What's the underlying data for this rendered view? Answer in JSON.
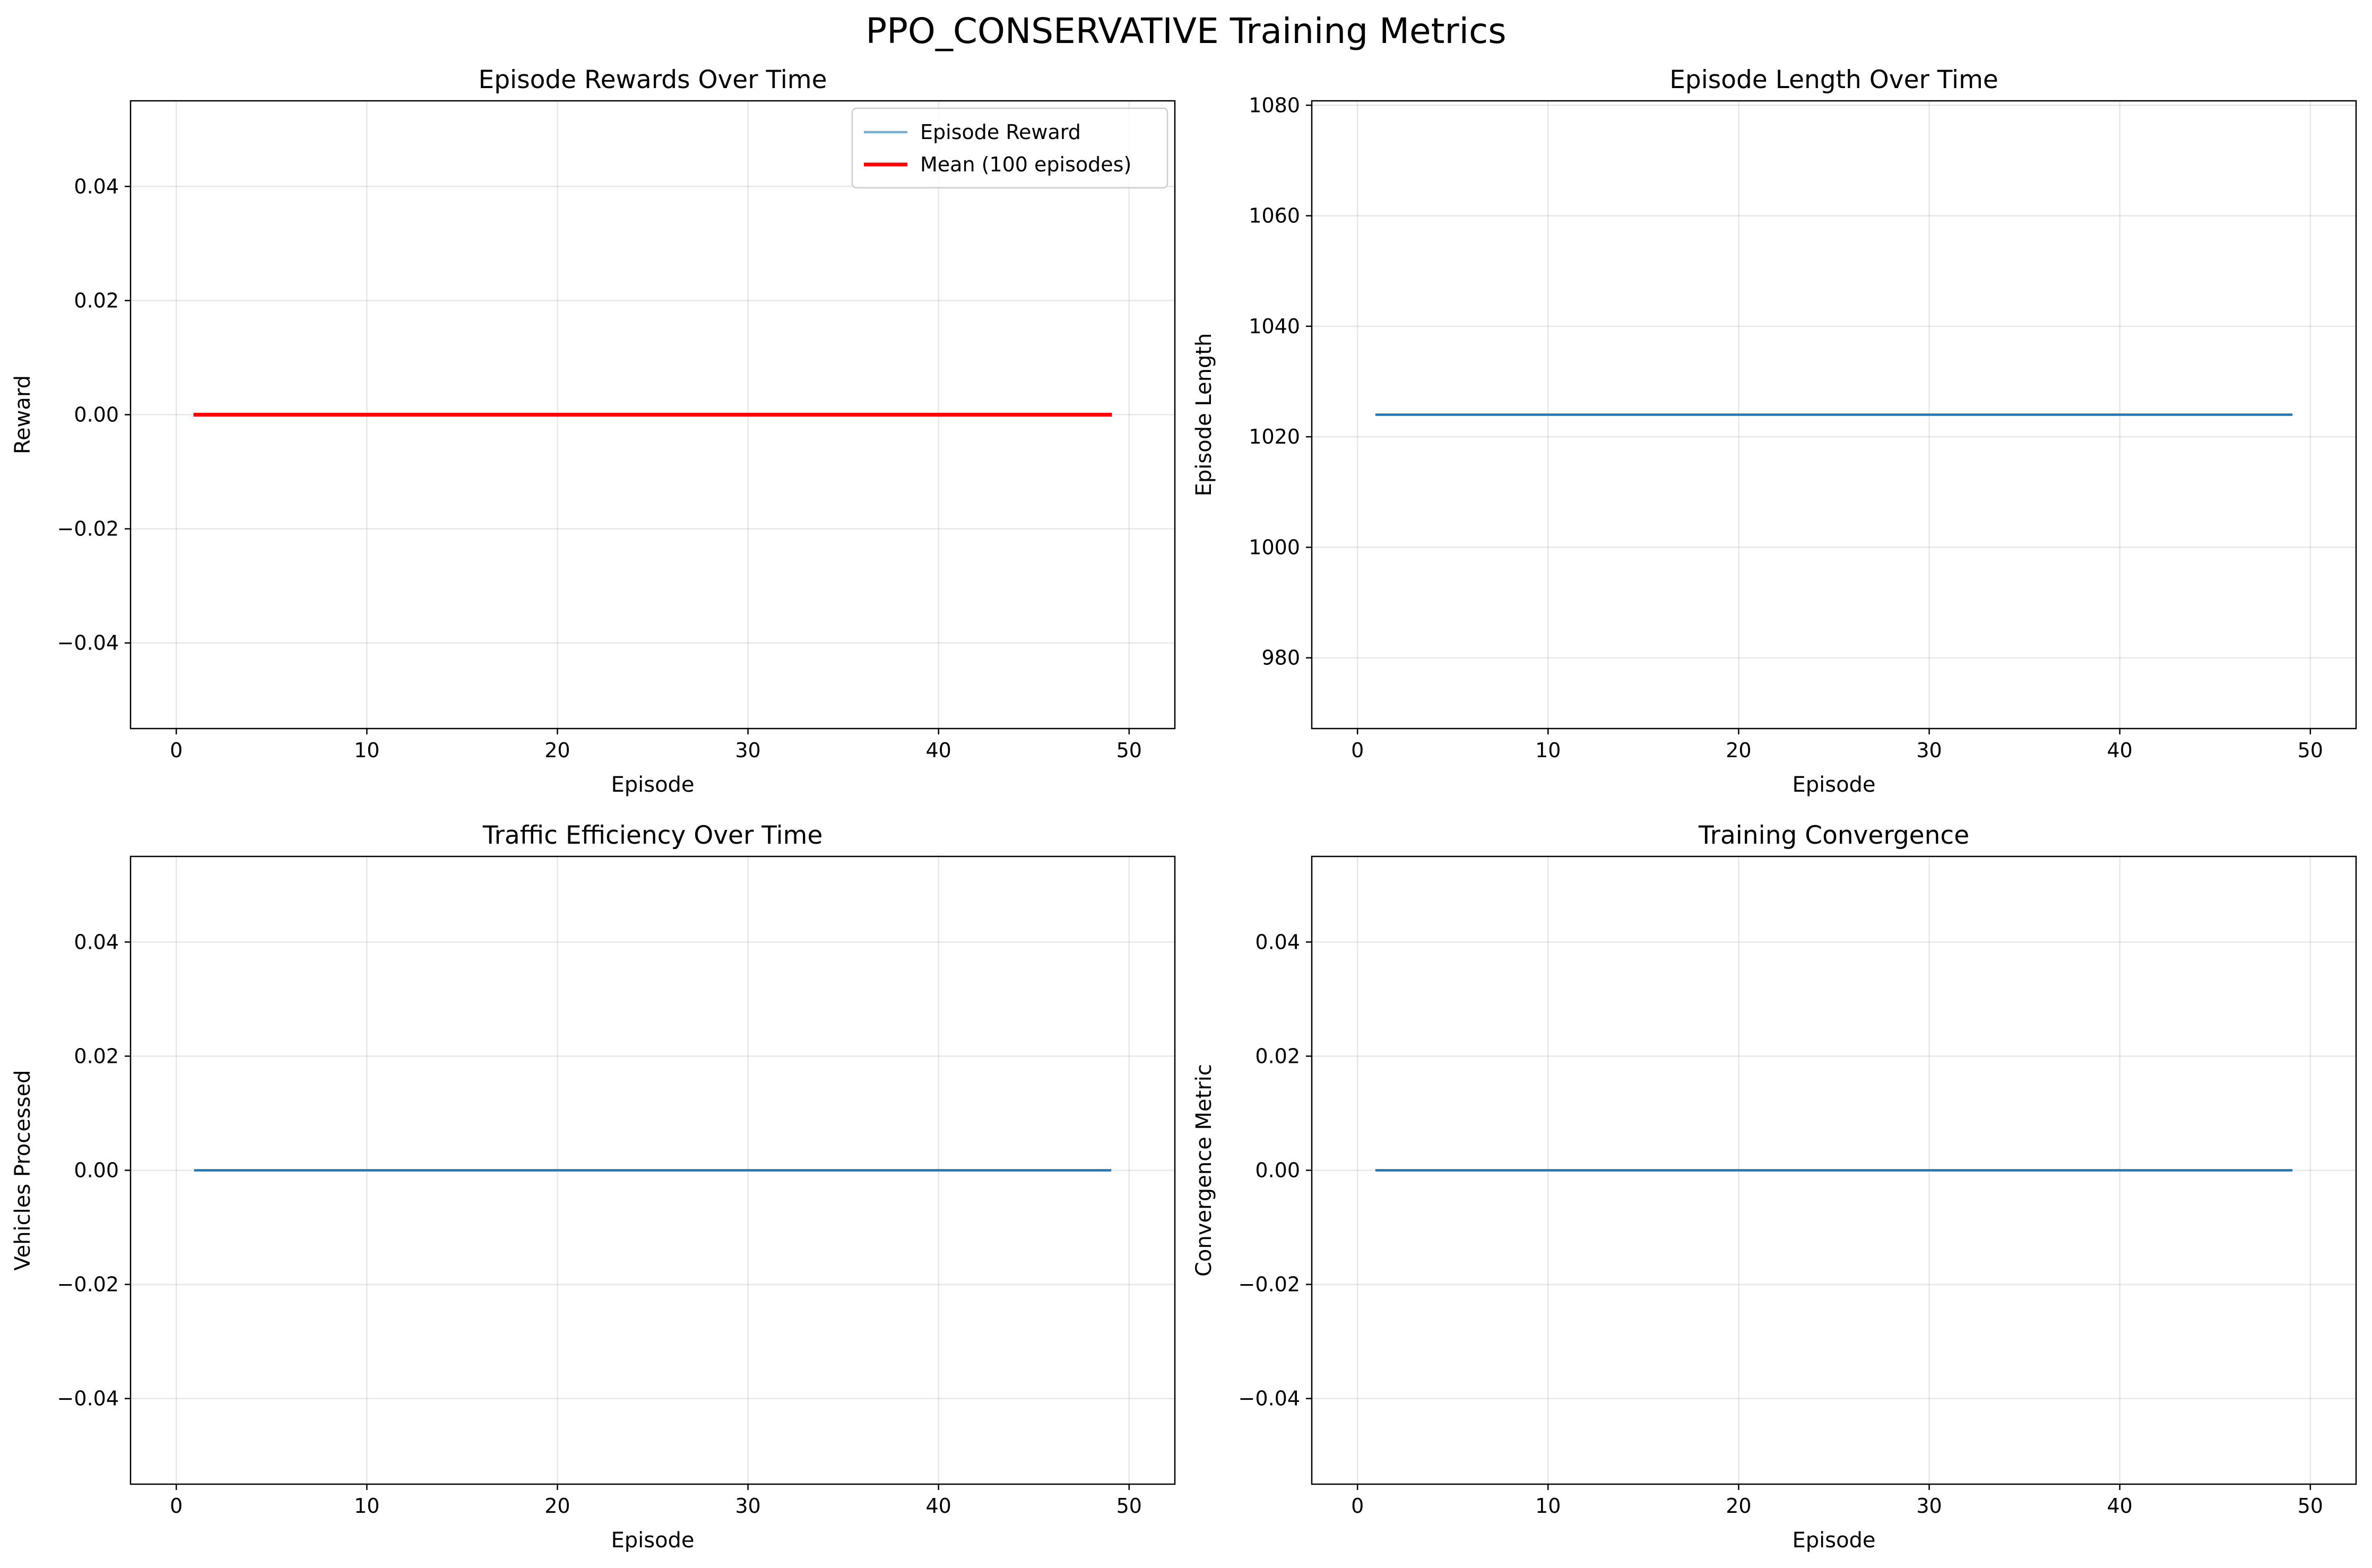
{
  "figure": {
    "suptitle": "PPO_CONSERVATIVE Training Metrics"
  },
  "colors": {
    "episode_reward": "#1f77b4",
    "mean": "#ff0000",
    "line": "#1f77b4",
    "grid": "#b0b0b0"
  },
  "chart_data": [
    {
      "type": "line",
      "title": "Episode Rewards Over Time",
      "xlabel": "Episode",
      "ylabel": "Reward",
      "xlim": [
        -2.4,
        52.4
      ],
      "ylim": [
        -0.055,
        0.055
      ],
      "xticks": [
        0,
        10,
        20,
        30,
        40,
        50
      ],
      "xtick_labels": [
        "0",
        "10",
        "20",
        "30",
        "40",
        "50"
      ],
      "yticks": [
        -0.04,
        -0.02,
        0.0,
        0.02,
        0.04
      ],
      "ytick_labels": [
        "−0.04",
        "−0.02",
        "0.00",
        "0.02",
        "0.04"
      ],
      "grid": true,
      "legend": "upper-right",
      "series": [
        {
          "name": "Episode Reward",
          "x_range": [
            1,
            49
          ],
          "value": 0.0,
          "color": "#1f77b4",
          "alpha": 0.6
        },
        {
          "name": "Mean (100 episodes)",
          "x_range": [
            1,
            49
          ],
          "value": 0.0,
          "color": "#ff0000",
          "alpha": 1.0
        }
      ]
    },
    {
      "type": "line",
      "title": "Episode Length Over Time",
      "xlabel": "Episode",
      "ylabel": "Episode Length",
      "xlim": [
        -2.4,
        52.4
      ],
      "ylim": [
        967.2,
        1080.8
      ],
      "xticks": [
        0,
        10,
        20,
        30,
        40,
        50
      ],
      "xtick_labels": [
        "0",
        "10",
        "20",
        "30",
        "40",
        "50"
      ],
      "yticks": [
        980,
        1000,
        1020,
        1040,
        1060,
        1080
      ],
      "ytick_labels": [
        "980",
        "1000",
        "1020",
        "1040",
        "1060",
        "1080"
      ],
      "grid": true,
      "legend": "none",
      "series": [
        {
          "x_range": [
            1,
            49
          ],
          "value": 1024,
          "color": "#1f77b4",
          "alpha": 1.0
        }
      ]
    },
    {
      "type": "line",
      "title": "Traffic Efficiency Over Time",
      "xlabel": "Episode",
      "ylabel": "Vehicles Processed",
      "xlim": [
        -2.4,
        52.4
      ],
      "ylim": [
        -0.055,
        0.055
      ],
      "xticks": [
        0,
        10,
        20,
        30,
        40,
        50
      ],
      "xtick_labels": [
        "0",
        "10",
        "20",
        "30",
        "40",
        "50"
      ],
      "yticks": [
        -0.04,
        -0.02,
        0.0,
        0.02,
        0.04
      ],
      "ytick_labels": [
        "−0.04",
        "−0.02",
        "0.00",
        "0.02",
        "0.04"
      ],
      "grid": true,
      "legend": "none",
      "series": [
        {
          "x_range": [
            1,
            49
          ],
          "value": 0.0,
          "color": "#1f77b4",
          "alpha": 1.0
        }
      ]
    },
    {
      "type": "line",
      "title": "Training Convergence",
      "xlabel": "Episode",
      "ylabel": "Convergence Metric",
      "xlim": [
        -2.4,
        52.4
      ],
      "ylim": [
        -0.055,
        0.055
      ],
      "xticks": [
        0,
        10,
        20,
        30,
        40,
        50
      ],
      "xtick_labels": [
        "0",
        "10",
        "20",
        "30",
        "40",
        "50"
      ],
      "yticks": [
        -0.04,
        -0.02,
        0.0,
        0.02,
        0.04
      ],
      "ytick_labels": [
        "−0.04",
        "−0.02",
        "0.00",
        "0.02",
        "0.04"
      ],
      "grid": true,
      "legend": "none",
      "series": [
        {
          "x_range": [
            1,
            49
          ],
          "value": 0.0,
          "color": "#1f77b4",
          "alpha": 1.0
        }
      ]
    }
  ]
}
